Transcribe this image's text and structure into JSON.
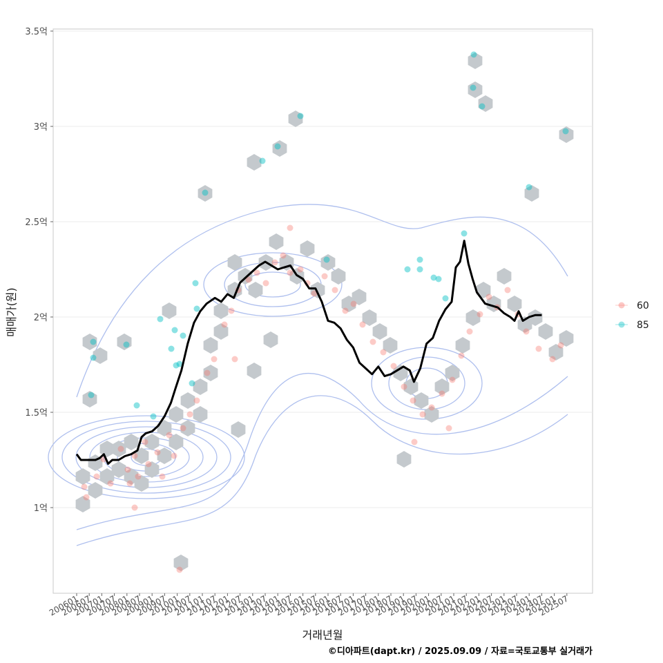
{
  "chart_data": {
    "type": "scatter",
    "xlabel": "거래년월",
    "ylabel": "매매가(원)",
    "ylim": [
      0.55,
      3.55
    ],
    "y_ticks": [
      {
        "value": 1.0,
        "label": "1억"
      },
      {
        "value": 1.5,
        "label": "1.5억"
      },
      {
        "value": 2.0,
        "label": "2억"
      },
      {
        "value": 2.5,
        "label": "2.5억"
      },
      {
        "value": 3.0,
        "label": "3억"
      },
      {
        "value": 3.5,
        "label": "3.5억"
      }
    ],
    "x_ticks": [
      "200601",
      "200607",
      "200701",
      "200707",
      "200801",
      "200807",
      "200901",
      "200907",
      "201001",
      "201007",
      "201101",
      "201107",
      "201201",
      "201207",
      "201301",
      "201307",
      "201401",
      "201407",
      "201501",
      "201507",
      "201601",
      "201607",
      "201701",
      "201707",
      "201801",
      "201807",
      "201901",
      "201907",
      "202001",
      "202007",
      "202101",
      "202107",
      "202201",
      "202207",
      "202301",
      "202307",
      "202401",
      "202407",
      "202501",
      "202507"
    ],
    "grid": true,
    "legend_position": "right",
    "legend": [
      {
        "name": "60",
        "color": "#F8766D"
      },
      {
        "name": "85",
        "color": "#00BFC4"
      }
    ],
    "trend_line": [
      [
        "2006-01",
        1.28
      ],
      [
        "2006-03",
        1.25
      ],
      [
        "2006-06",
        1.25
      ],
      [
        "2006-10",
        1.25
      ],
      [
        "2006-12",
        1.26
      ],
      [
        "2007-02",
        1.28
      ],
      [
        "2007-04",
        1.23
      ],
      [
        "2007-06",
        1.25
      ],
      [
        "2007-09",
        1.25
      ],
      [
        "2007-12",
        1.27
      ],
      [
        "2008-03",
        1.28
      ],
      [
        "2008-06",
        1.3
      ],
      [
        "2008-08",
        1.37
      ],
      [
        "2008-10",
        1.39
      ],
      [
        "2009-01",
        1.4
      ],
      [
        "2009-04",
        1.43
      ],
      [
        "2009-07",
        1.48
      ],
      [
        "2009-10",
        1.55
      ],
      [
        "2009-12",
        1.62
      ],
      [
        "2010-03",
        1.72
      ],
      [
        "2010-06",
        1.86
      ],
      [
        "2010-09",
        1.97
      ],
      [
        "2010-12",
        2.03
      ],
      [
        "2011-03",
        2.07
      ],
      [
        "2011-07",
        2.1
      ],
      [
        "2011-10",
        2.08
      ],
      [
        "2012-01",
        2.12
      ],
      [
        "2012-04",
        2.1
      ],
      [
        "2012-07",
        2.18
      ],
      [
        "2012-10",
        2.21
      ],
      [
        "2013-01",
        2.24
      ],
      [
        "2013-04",
        2.27
      ],
      [
        "2013-07",
        2.29
      ],
      [
        "2013-10",
        2.27
      ],
      [
        "2014-01",
        2.25
      ],
      [
        "2014-04",
        2.26
      ],
      [
        "2014-07",
        2.27
      ],
      [
        "2014-10",
        2.22
      ],
      [
        "2015-01",
        2.2
      ],
      [
        "2015-04",
        2.15
      ],
      [
        "2015-07",
        2.15
      ],
      [
        "2015-10",
        2.08
      ],
      [
        "2016-01",
        1.98
      ],
      [
        "2016-04",
        1.97
      ],
      [
        "2016-07",
        1.94
      ],
      [
        "2016-10",
        1.88
      ],
      [
        "2017-01",
        1.84
      ],
      [
        "2017-04",
        1.76
      ],
      [
        "2017-07",
        1.73
      ],
      [
        "2017-10",
        1.7
      ],
      [
        "2018-01",
        1.74
      ],
      [
        "2018-04",
        1.69
      ],
      [
        "2018-07",
        1.7
      ],
      [
        "2018-10",
        1.72
      ],
      [
        "2019-01",
        1.74
      ],
      [
        "2019-04",
        1.72
      ],
      [
        "2019-06",
        1.66
      ],
      [
        "2019-09",
        1.73
      ],
      [
        "2019-12",
        1.86
      ],
      [
        "2020-03",
        1.89
      ],
      [
        "2020-06",
        1.98
      ],
      [
        "2020-09",
        2.04
      ],
      [
        "2020-12",
        2.08
      ],
      [
        "2021-02",
        2.26
      ],
      [
        "2021-04",
        2.29
      ],
      [
        "2021-06",
        2.4
      ],
      [
        "2021-08",
        2.28
      ],
      [
        "2021-10",
        2.2
      ],
      [
        "2021-12",
        2.13
      ],
      [
        "2022-02",
        2.1
      ],
      [
        "2022-04",
        2.07
      ],
      [
        "2022-07",
        2.06
      ],
      [
        "2022-10",
        2.05
      ],
      [
        "2023-01",
        2.02
      ],
      [
        "2023-04",
        2.0
      ],
      [
        "2023-06",
        1.98
      ],
      [
        "2023-08",
        2.03
      ],
      [
        "2023-10",
        1.98
      ],
      [
        "2024-01",
        2.0
      ],
      [
        "2024-04",
        2.01
      ],
      [
        "2024-07",
        2.01
      ]
    ]
  },
  "caption": "©디아파트(dapt.kr) / 2025.09.09 / 자료=국토교통부 실거래가"
}
